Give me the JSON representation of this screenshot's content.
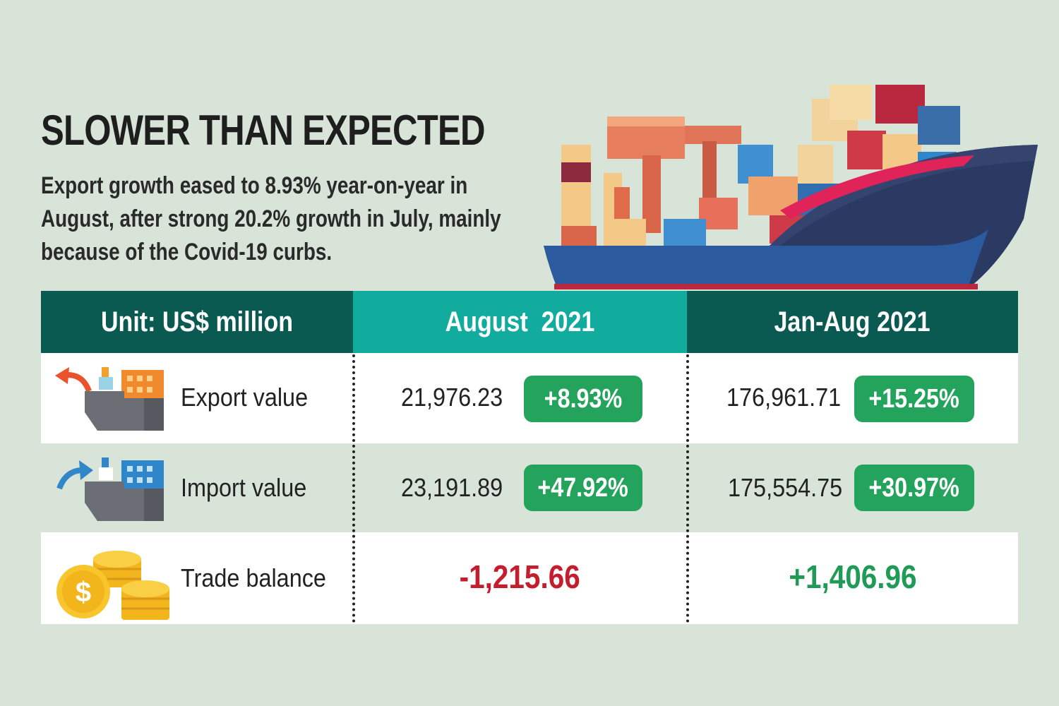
{
  "header": {
    "title": "SLOWER THAN EXPECTED",
    "subtitle": "Export growth eased to 8.93% year-on-year in August, after strong 20.2% growth in July, mainly because of the Covid-19 curbs."
  },
  "table": {
    "columns": [
      "Unit: US$ million",
      "August  2021",
      "Jan-Aug 2021"
    ],
    "rows": [
      {
        "icon": "export-ship-icon",
        "label": "Export value",
        "aug_value": "21,976.23",
        "aug_change": "+8.93%",
        "ytd_value": "176,961.71",
        "ytd_change": "+15.25%"
      },
      {
        "icon": "import-ship-icon",
        "label": "Import value",
        "aug_value": "23,191.89",
        "aug_change": "+47.92%",
        "ytd_value": "175,554.75",
        "ytd_change": "+30.97%"
      },
      {
        "icon": "coins-icon",
        "label": "Trade balance",
        "aug_value": "-1,215.66",
        "ytd_value": "+1,406.96"
      }
    ]
  },
  "colors": {
    "background": "#d7e4d7",
    "header_dark": "#0b5a52",
    "header_teal": "#12ac9e",
    "badge_green": "#23a35c",
    "negative_red": "#c41e2e",
    "positive_green": "#1f9a57"
  },
  "illustration": {
    "icon": "container-ship-icon"
  }
}
